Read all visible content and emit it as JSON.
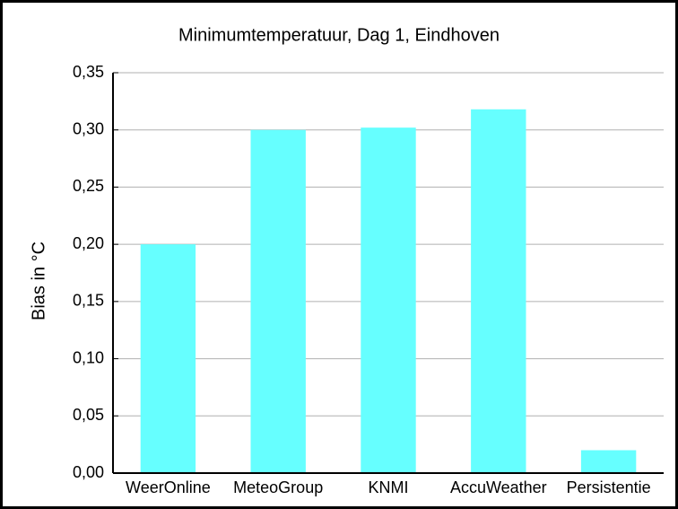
{
  "chart_data": {
    "type": "bar",
    "title": "Minimumtemperatuur, Dag 1, Eindhoven",
    "y_label": "Bias in °C",
    "categories": [
      "WeerOnline",
      "MeteoGroup",
      "KNMI",
      "AccuWeather",
      "Persistentie"
    ],
    "values": [
      0.2,
      0.3,
      0.302,
      0.318,
      0.02
    ],
    "color": "#66ffff",
    "ylim": [
      0,
      0.35
    ],
    "yticks": [
      {
        "value": 0,
        "label": "0,00"
      },
      {
        "value": 0.05,
        "label": "0,05"
      },
      {
        "value": 0.1,
        "label": "0,10"
      },
      {
        "value": 0.15,
        "label": "0,15"
      },
      {
        "value": 0.2,
        "label": "0,20"
      },
      {
        "value": 0.25,
        "label": "0,25"
      },
      {
        "value": 0.3,
        "label": "0,30"
      },
      {
        "value": 0.35,
        "label": "0,35"
      }
    ],
    "grid": true
  }
}
